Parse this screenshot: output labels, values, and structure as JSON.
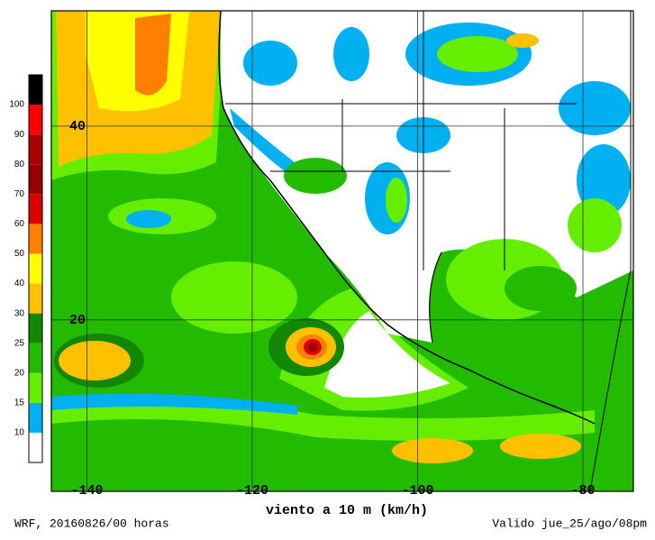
{
  "map": {
    "xlabel": "viento a 10 m (km/h)",
    "footer_left": "WRF, 20160826/00 horas",
    "footer_right": "Valido jue_25/ago/08pm",
    "xlim": [
      -144.3,
      -73.9
    ],
    "ylim": [
      2.3,
      51.9
    ],
    "xticks": [
      -140,
      -120,
      -100,
      -80
    ],
    "yticks": [
      40,
      20
    ],
    "colorbar": {
      "labels": [
        10,
        15,
        20,
        25,
        30,
        40,
        50,
        60,
        70,
        80,
        90,
        100
      ],
      "colors": [
        "#ffffff",
        "#00b0f0",
        "#66ee00",
        "#22bb00",
        "#118800",
        "#ffc000",
        "#ffff00",
        "#ff8000",
        "#dd0000",
        "#990000",
        "#aa0000",
        "#ff0000",
        "#000000",
        "#ffffff"
      ]
    }
  }
}
